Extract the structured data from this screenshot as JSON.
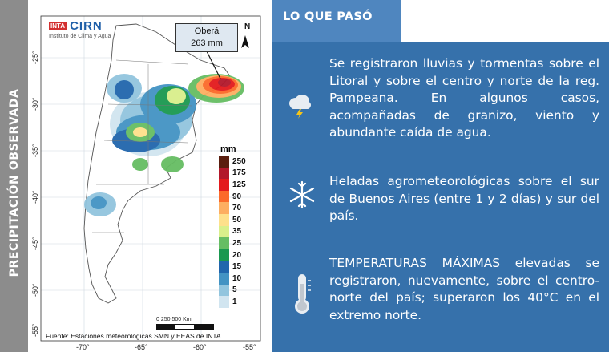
{
  "side_title": "PRECIPITACIÓN OBSERVADA",
  "map": {
    "logo_inta": "INTA",
    "logo_cirn": "CIRN",
    "logo_sub": "Instituto de Clima y Agua",
    "callout_city": "Oberá",
    "callout_value": "263 mm",
    "north_label": "N",
    "lat_labels": [
      "-25°",
      "-30°",
      "-35°",
      "-40°",
      "-45°",
      "-50°",
      "-55°"
    ],
    "lon_labels": [
      "-70°",
      "-65°",
      "-60°",
      "-55°"
    ],
    "legend_title": "mm",
    "legend": [
      {
        "label": "250",
        "color": "#5a1e0f"
      },
      {
        "label": "175",
        "color": "#b2182b"
      },
      {
        "label": "125",
        "color": "#e31a1c"
      },
      {
        "label": "90",
        "color": "#fb6a2a"
      },
      {
        "label": "70",
        "color": "#fdae61"
      },
      {
        "label": "50",
        "color": "#fee08b"
      },
      {
        "label": "35",
        "color": "#d9ef8b"
      },
      {
        "label": "25",
        "color": "#66bd63"
      },
      {
        "label": "20",
        "color": "#1a9850"
      },
      {
        "label": "15",
        "color": "#2166ac"
      },
      {
        "label": "10",
        "color": "#4393c3"
      },
      {
        "label": "5",
        "color": "#92c5de"
      },
      {
        "label": "1",
        "color": "#d1e5f0"
      }
    ],
    "scale_labels": "0     250     500 Km",
    "source": "Fuente: Estaciones meteorológicas SMN y EEAS de INTA"
  },
  "panel": {
    "header": "LO QUE PASÓ",
    "items": [
      {
        "icon": "storm-cloud-icon",
        "text": "Se registraron lluvias y tormentas sobre el Litoral y sobre el centro y norte de la reg. Pampeana. En algunos casos, acompañadas de granizo, viento y abundante caída de agua."
      },
      {
        "icon": "snowflake-icon",
        "text": "Heladas agrometeorológicas sobre el sur de Buenos Aires (entre 1 y 2 días) y sur del país."
      },
      {
        "icon": "thermometer-icon",
        "text": "TEMPERATURAS MÁXIMAS elevadas se registraron, nuevamente, sobre el centro-norte del país; superaron los 40°C en el extremo norte."
      }
    ]
  },
  "colors": {
    "panel_bg": "#3671ab",
    "header_bg": "#4f86bf",
    "side_band": "#8c8c8c"
  }
}
